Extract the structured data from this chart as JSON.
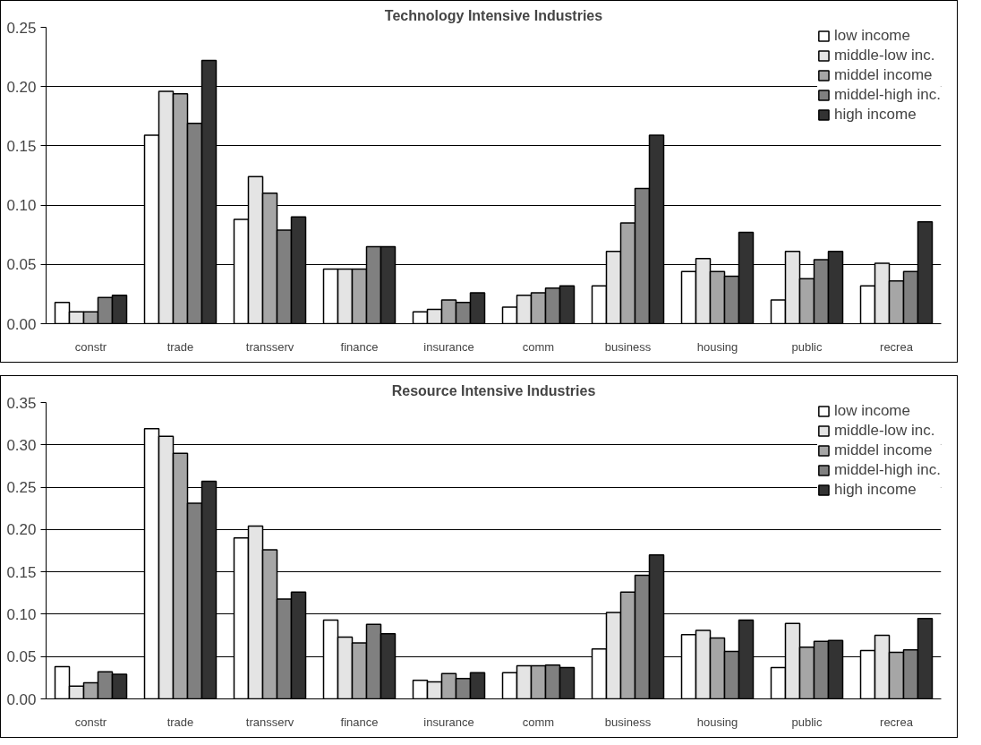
{
  "chart_data": [
    {
      "type": "bar",
      "title": "Technology Intensive Industries",
      "categories": [
        "constr",
        "trade",
        "transserv",
        "finance",
        "insurance",
        "comm",
        "business",
        "housing",
        "public",
        "recrea"
      ],
      "series": [
        {
          "name": "low income",
          "color": "#ffffff",
          "values": [
            0.018,
            0.159,
            0.088,
            0.046,
            0.01,
            0.014,
            0.032,
            0.044,
            0.02,
            0.032
          ]
        },
        {
          "name": "middle-low inc.",
          "color": "#e4e4e4",
          "values": [
            0.01,
            0.196,
            0.124,
            0.046,
            0.012,
            0.024,
            0.061,
            0.055,
            0.061,
            0.051
          ]
        },
        {
          "name": "middel income",
          "color": "#a6a6a6",
          "values": [
            0.01,
            0.194,
            0.11,
            0.046,
            0.02,
            0.026,
            0.085,
            0.044,
            0.038,
            0.036
          ]
        },
        {
          "name": "middel-high inc.",
          "color": "#808080",
          "values": [
            0.022,
            0.169,
            0.079,
            0.065,
            0.018,
            0.03,
            0.114,
            0.04,
            0.054,
            0.044
          ]
        },
        {
          "name": "high income",
          "color": "#333333",
          "values": [
            0.024,
            0.222,
            0.09,
            0.065,
            0.026,
            0.032,
            0.159,
            0.077,
            0.061,
            0.086
          ]
        }
      ],
      "ylim": [
        0,
        0.25
      ],
      "yticks": [
        {
          "value": 0,
          "label": "0.00"
        },
        {
          "value": 0.05,
          "label": "0.05"
        },
        {
          "value": 0.1,
          "label": "0.10"
        },
        {
          "value": 0.15,
          "label": "0.15"
        },
        {
          "value": 0.2,
          "label": "0.20"
        },
        {
          "value": 0.25,
          "label": "0.25"
        }
      ],
      "grid": "y",
      "legend": "top right"
    },
    {
      "type": "bar",
      "title": "Resource Intensive Industries",
      "categories": [
        "constr",
        "trade",
        "transserv",
        "finance",
        "insurance",
        "comm",
        "business",
        "housing",
        "public",
        "recrea"
      ],
      "series": [
        {
          "name": "low income",
          "color": "#ffffff",
          "values": [
            0.038,
            0.319,
            0.19,
            0.093,
            0.022,
            0.031,
            0.059,
            0.076,
            0.037,
            0.057
          ]
        },
        {
          "name": "middle-low inc.",
          "color": "#e4e4e4",
          "values": [
            0.015,
            0.31,
            0.204,
            0.073,
            0.02,
            0.039,
            0.102,
            0.081,
            0.089,
            0.075
          ]
        },
        {
          "name": "middel income",
          "color": "#a6a6a6",
          "values": [
            0.019,
            0.29,
            0.176,
            0.066,
            0.03,
            0.039,
            0.126,
            0.072,
            0.061,
            0.055
          ]
        },
        {
          "name": "middel-high inc.",
          "color": "#808080",
          "values": [
            0.032,
            0.231,
            0.118,
            0.088,
            0.024,
            0.04,
            0.146,
            0.056,
            0.068,
            0.058
          ]
        },
        {
          "name": "high income",
          "color": "#333333",
          "values": [
            0.029,
            0.257,
            0.126,
            0.077,
            0.031,
            0.037,
            0.17,
            0.093,
            0.069,
            0.095
          ]
        }
      ],
      "ylim": [
        0,
        0.35
      ],
      "yticks": [
        {
          "value": 0,
          "label": "0.00"
        },
        {
          "value": 0.05,
          "label": "0.05"
        },
        {
          "value": 0.1,
          "label": "0.10"
        },
        {
          "value": 0.15,
          "label": "0.15"
        },
        {
          "value": 0.2,
          "label": "0.20"
        },
        {
          "value": 0.25,
          "label": "0.25"
        },
        {
          "value": 0.3,
          "label": "0.30"
        },
        {
          "value": 0.35,
          "label": "0.35"
        }
      ],
      "grid": "y",
      "legend": "top right"
    }
  ]
}
